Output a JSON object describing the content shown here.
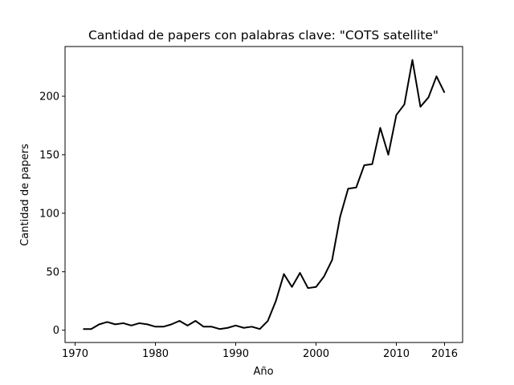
{
  "chart_data": {
    "type": "line",
    "title": "Cantidad de papers con palabras clave: \"COTS satellite\"",
    "x_label": "Año",
    "y_label": "Cantidad de papers",
    "x": [
      1971,
      1972,
      1973,
      1974,
      1975,
      1976,
      1977,
      1978,
      1979,
      1980,
      1981,
      1982,
      1983,
      1984,
      1985,
      1986,
      1987,
      1988,
      1989,
      1990,
      1991,
      1992,
      1993,
      1994,
      1995,
      1996,
      1997,
      1998,
      1999,
      2000,
      2001,
      2002,
      2003,
      2004,
      2005,
      2006,
      2007,
      2008,
      2009,
      2010,
      2011,
      2012,
      2013,
      2014,
      2015,
      2016
    ],
    "values": [
      1,
      1,
      5,
      7,
      5,
      6,
      4,
      6,
      5,
      3,
      3,
      5,
      8,
      4,
      8,
      3,
      3,
      1,
      2,
      4,
      2,
      3,
      1,
      8,
      25,
      48,
      37,
      49,
      36,
      37,
      46,
      60,
      97,
      121,
      122,
      141,
      142,
      173,
      150,
      184,
      193,
      231,
      191,
      199,
      217,
      203
    ],
    "color": "#000000",
    "xlim": [
      1968.75,
      2018.25
    ],
    "ylim": [
      -10.5,
      242.5
    ],
    "xticks": [
      1970,
      1980,
      1990,
      2000,
      2010,
      2016
    ],
    "yticks": [
      0,
      50,
      100,
      150,
      200
    ]
  }
}
